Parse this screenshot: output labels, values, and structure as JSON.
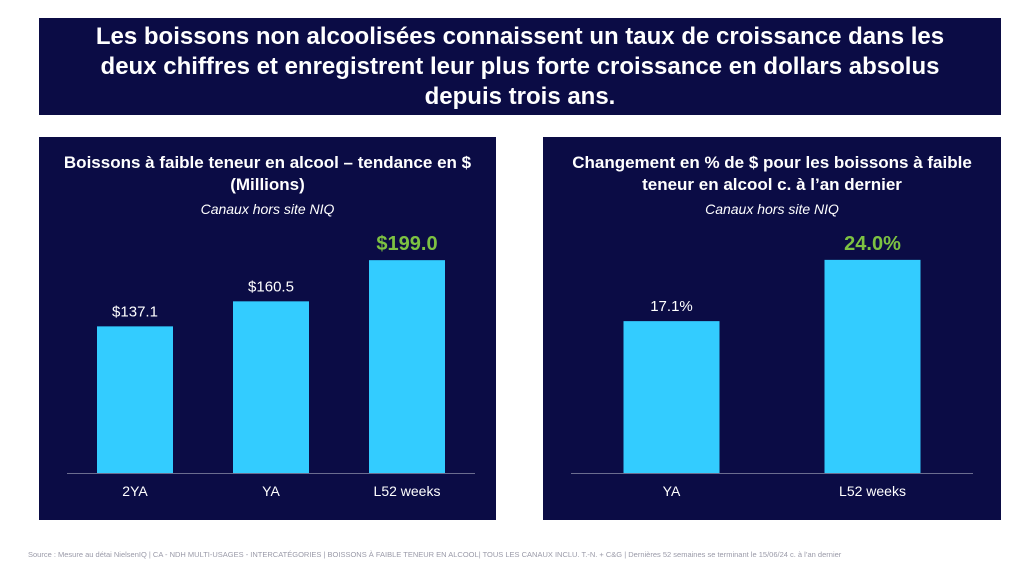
{
  "headline": "Les boissons non alcoolisées connaissent un taux de croissance dans les deux chiffres et enregistrent leur plus forte croissance en dollars absolus depuis trois ans.",
  "colors": {
    "background": "#0b0c45",
    "bar": "#33ccff",
    "highlight_label": "#7dc242",
    "text": "#ffffff",
    "baseline": "#6b6d8f"
  },
  "chart_data": [
    {
      "type": "bar",
      "title": "Boissons à faible teneur en alcool – tendance en $ (Millions)",
      "subtitle": "Canaux hors site NIQ",
      "categories": [
        "2YA",
        "YA",
        "L52 weeks"
      ],
      "values": [
        137.1,
        160.5,
        199.0
      ],
      "data_labels": [
        "$137.1",
        "$160.5",
        "$199.0"
      ],
      "highlight_index": 2,
      "ylim": [
        0,
        230
      ]
    },
    {
      "type": "bar",
      "title": "Changement en % de $ pour les boissons à faible teneur en alcool c. à l’an dernier",
      "subtitle": "Canaux hors site NIQ",
      "categories": [
        "YA",
        "L52 weeks"
      ],
      "values": [
        17.1,
        24.0
      ],
      "data_labels": [
        "17.1%",
        "24.0%"
      ],
      "highlight_index": 1,
      "ylim": [
        0,
        27.7
      ]
    }
  ],
  "source": "Source : Mesure au détai NielsenIQ | CA - NDH MULTI-USAGES - INTERCATÉGORIES | BOISSONS À FAIBLE TENEUR EN ALCOOL| TOUS LES CANAUX INCLU. T.-N. + C&G | Dernières 52 semaines se terminant le 15/06/24 c. à l’an dernier"
}
